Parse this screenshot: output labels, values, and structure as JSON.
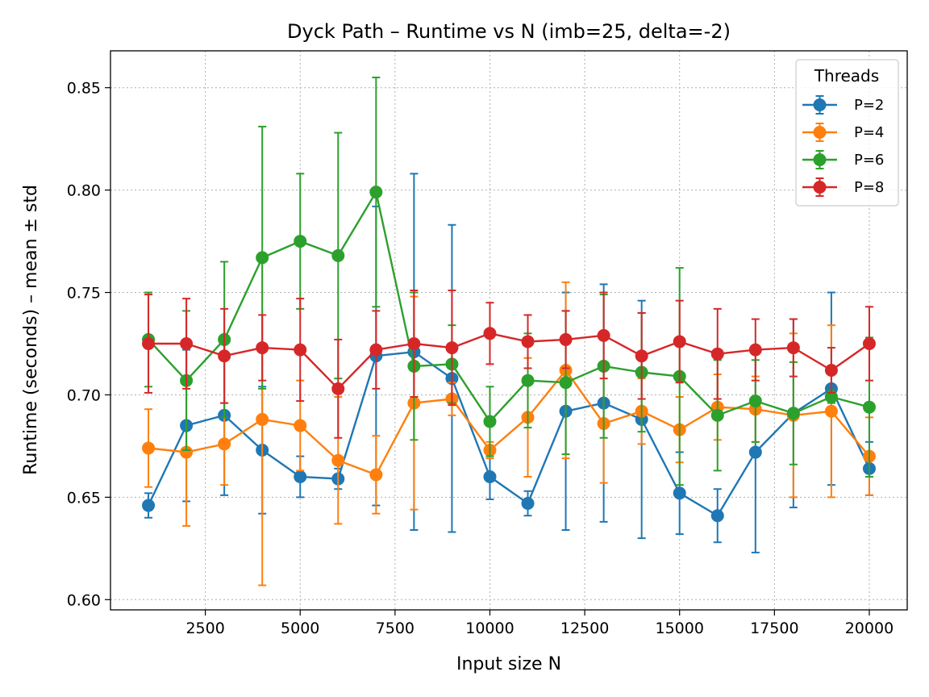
{
  "chart_data": {
    "type": "line",
    "title": "Dyck Path – Runtime vs N (imb=25, delta=-2)",
    "xlabel": "Input size N",
    "ylabel": "Runtime (seconds) – mean ± std",
    "xlim": [
      0,
      21000
    ],
    "ylim": [
      0.595,
      0.868
    ],
    "x": [
      1000,
      2000,
      3000,
      4000,
      5000,
      6000,
      7000,
      8000,
      9000,
      10000,
      11000,
      12000,
      13000,
      14000,
      15000,
      16000,
      17000,
      18000,
      19000,
      20000
    ],
    "xticks": [
      2500,
      5000,
      7500,
      10000,
      12500,
      15000,
      17500,
      20000
    ],
    "xtick_labels": [
      "2500",
      "5000",
      "7500",
      "10000",
      "12500",
      "15000",
      "17500",
      "20000"
    ],
    "yticks": [
      0.6,
      0.65,
      0.7,
      0.75,
      0.8,
      0.85
    ],
    "ytick_labels": [
      "0.60",
      "0.65",
      "0.70",
      "0.75",
      "0.80",
      "0.85"
    ],
    "grid": true,
    "legend": {
      "title": "Threads",
      "position": "top-right"
    },
    "series": [
      {
        "name": "P=2",
        "color": "#1f77b4",
        "values": [
          0.646,
          0.685,
          0.69,
          0.673,
          0.66,
          0.659,
          0.719,
          0.721,
          0.708,
          0.66,
          0.647,
          0.692,
          0.696,
          0.688,
          0.652,
          0.641,
          0.672,
          0.691,
          0.703,
          0.664
        ],
        "err": [
          0.006,
          0.037,
          0.039,
          0.031,
          0.01,
          0.005,
          0.073,
          0.087,
          0.075,
          0.011,
          0.006,
          0.058,
          0.058,
          0.058,
          0.02,
          0.013,
          0.049,
          0.046,
          0.047,
          0.013
        ]
      },
      {
        "name": "P=4",
        "color": "#ff7f0e",
        "values": [
          0.674,
          0.672,
          0.676,
          0.688,
          0.685,
          0.668,
          0.661,
          0.696,
          0.698,
          0.673,
          0.689,
          0.712,
          0.686,
          0.692,
          0.683,
          0.694,
          0.693,
          0.69,
          0.692,
          0.67
        ],
        "err": [
          0.019,
          0.036,
          0.02,
          0.081,
          0.022,
          0.031,
          0.019,
          0.052,
          0.008,
          0.004,
          0.029,
          0.043,
          0.029,
          0.016,
          0.016,
          0.016,
          0.016,
          0.04,
          0.042,
          0.019
        ]
      },
      {
        "name": "P=6",
        "color": "#2ca02c",
        "values": [
          0.727,
          0.707,
          0.727,
          0.767,
          0.775,
          0.768,
          0.799,
          0.714,
          0.715,
          0.687,
          0.707,
          0.706,
          0.714,
          0.711,
          0.709,
          0.69,
          0.697,
          0.691,
          0.699,
          0.694
        ],
        "err": [
          0.023,
          0.034,
          0.038,
          0.064,
          0.033,
          0.06,
          0.056,
          0.036,
          0.019,
          0.017,
          0.023,
          0.035,
          0.035,
          0.029,
          0.053,
          0.027,
          0.02,
          0.025,
          0.003,
          0.034
        ]
      },
      {
        "name": "P=8",
        "color": "#d62728",
        "values": [
          0.725,
          0.725,
          0.719,
          0.723,
          0.722,
          0.703,
          0.722,
          0.725,
          0.723,
          0.73,
          0.726,
          0.727,
          0.729,
          0.719,
          0.726,
          0.72,
          0.722,
          0.723,
          0.712,
          0.725
        ],
        "err": [
          0.024,
          0.022,
          0.023,
          0.016,
          0.025,
          0.024,
          0.019,
          0.026,
          0.028,
          0.015,
          0.013,
          0.014,
          0.021,
          0.021,
          0.02,
          0.022,
          0.015,
          0.014,
          0.011,
          0.018
        ]
      }
    ]
  }
}
